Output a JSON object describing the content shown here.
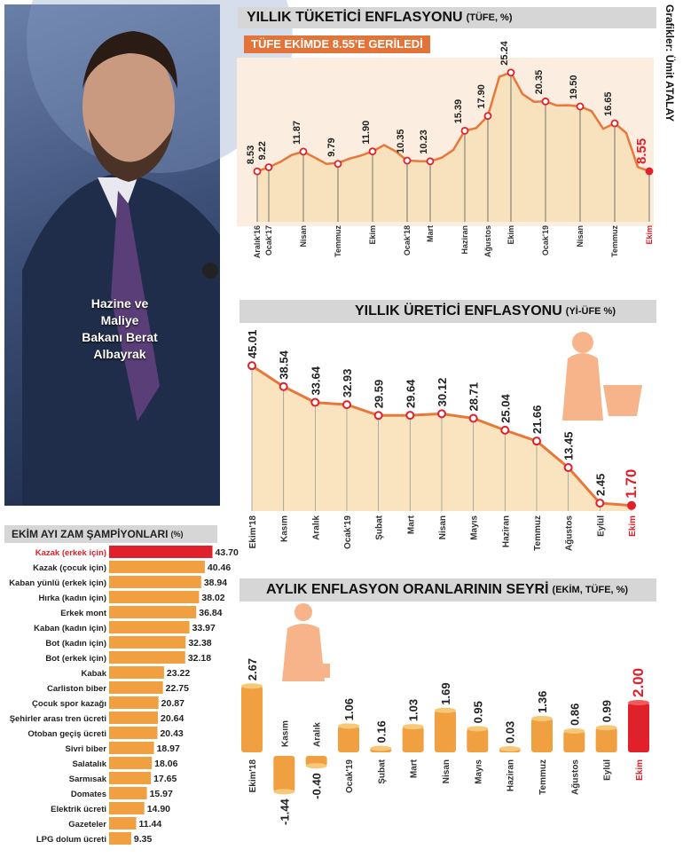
{
  "photo": {
    "caption": "Hazine ve Maliye Bakanı Berat Albayrak"
  },
  "credit": "Grafikler: Ümit ATALAY",
  "colors": {
    "accent": "#f0a040",
    "line": "#e8773a",
    "highlight": "#e0202a",
    "panel": "#d6d6d6",
    "fill": "#f8dfb4"
  },
  "chart_data": [
    {
      "type": "line",
      "title": "YILLIK TÜKETİCİ ENFLASYONU",
      "title_unit": "(TÜFE, %)",
      "subtitle": "TÜFE EKİMDE 8.55'E GERİLEDİ",
      "tick_labels": [
        "Aralık'16",
        "Ocak'17",
        "Nisan",
        "Temmuz",
        "Ekim",
        "Ocak'18",
        "Mart",
        "Haziran",
        "Ağustos",
        "Ekim",
        "Ocak'19",
        "Nisan",
        "Temmuz",
        "Ekim"
      ],
      "labeled_points": [
        {
          "label": "8.53",
          "value": 8.53
        },
        {
          "label": "9.22",
          "value": 9.22
        },
        {
          "label": "11.87",
          "value": 11.87
        },
        {
          "label": "9.79",
          "value": 9.79
        },
        {
          "label": "11.90",
          "value": 11.9
        },
        {
          "label": "10.35",
          "value": 10.35
        },
        {
          "label": "10.23",
          "value": 10.23
        },
        {
          "label": "15.39",
          "value": 15.39
        },
        {
          "label": "17.90",
          "value": 17.9
        },
        {
          "label": "25.24",
          "value": 25.24
        },
        {
          "label": "20.35",
          "value": 20.35
        },
        {
          "label": "19.50",
          "value": 19.5
        },
        {
          "label": "16.65",
          "value": 16.65
        },
        {
          "label": "8.55",
          "value": 8.55
        }
      ],
      "monthly_values": [
        8.53,
        9.22,
        10.13,
        11.29,
        11.87,
        10.85,
        9.79,
        9.94,
        10.68,
        11.2,
        11.9,
        12.98,
        11.92,
        10.35,
        10.26,
        10.23,
        10.85,
        12.15,
        15.39,
        15.85,
        17.9,
        24.52,
        25.24,
        21.62,
        20.3,
        20.35,
        19.67,
        19.71,
        19.5,
        18.71,
        15.72,
        16.65,
        15.01,
        9.26,
        8.55
      ],
      "ylim": [
        0,
        27
      ]
    },
    {
      "type": "line",
      "title": "YILLIK ÜRETİCİ ENFLASYONU",
      "title_unit": "(Yİ-ÜFE %)",
      "categories": [
        "Ekim'18",
        "Kasım",
        "Aralık",
        "Ocak'19",
        "Şubat",
        "Mart",
        "Nisan",
        "Mayıs",
        "Haziran",
        "Temmuz",
        "Ağustos",
        "Eylül",
        "Ekim"
      ],
      "values": [
        45.01,
        38.54,
        33.64,
        32.93,
        29.59,
        29.64,
        30.12,
        28.71,
        25.04,
        21.66,
        13.45,
        2.45,
        1.7
      ],
      "value_labels": [
        "45.01",
        "38.54",
        "33.64",
        "32.93",
        "29.59",
        "29.64",
        "30.12",
        "28.71",
        "25.04",
        "21.66",
        "13.45",
        "2.45",
        "1.70"
      ],
      "ylim": [
        0,
        50
      ]
    },
    {
      "type": "bar",
      "title": "AYLIK ENFLASYON ORANLARININ SEYRİ",
      "title_unit": "(EKİM, TÜFE, %)",
      "categories": [
        "Ekim'18",
        "Kasım",
        "Aralık",
        "Ocak'19",
        "Şubat",
        "Mart",
        "Nisan",
        "Mayıs",
        "Haziran",
        "Temmuz",
        "Ağustos",
        "Eylül",
        "Ekim"
      ],
      "values": [
        2.67,
        -1.44,
        -0.4,
        1.06,
        0.16,
        1.03,
        1.69,
        0.95,
        0.03,
        1.36,
        0.86,
        0.99,
        2.0
      ],
      "value_labels": [
        "2.67",
        "-1.44",
        "-0.40",
        "1.06",
        "0.16",
        "1.03",
        "1.69",
        "0.95",
        "0.03",
        "1.36",
        "0.86",
        "0.99",
        "2.00"
      ],
      "ylim": [
        -1.5,
        2.8
      ]
    },
    {
      "type": "bar",
      "orientation": "horizontal",
      "title": "EKİM AYI ZAM ŞAMPİYONLARI",
      "title_unit": "(%)",
      "categories": [
        "Kazak (erkek için)",
        "Kazak (çocuk için)",
        "Kaban yünlü (erkek için)",
        "Hırka (kadın için)",
        "Erkek mont",
        "Kaban (kadın için)",
        "Bot (kadın için)",
        "Bot (erkek için)",
        "Kabak",
        "Carliston biber",
        "Çocuk spor kazağı",
        "Şehirler arası tren ücreti",
        "Otoban geçiş ücreti",
        "Sivri biber",
        "Salatalık",
        "Sarmısak",
        "Domates",
        "Elektrik ücreti",
        "Gazeteler",
        "LPG dolum ücreti"
      ],
      "values": [
        43.7,
        40.46,
        38.94,
        38.02,
        36.84,
        33.97,
        32.38,
        32.18,
        23.22,
        22.75,
        20.87,
        20.64,
        20.43,
        18.97,
        18.06,
        17.65,
        15.97,
        14.9,
        11.44,
        9.35
      ],
      "value_labels": [
        "43.70",
        "40.46",
        "38.94",
        "38.02",
        "36.84",
        "33.97",
        "32.38",
        "32.18",
        "23.22",
        "22.75",
        "20.87",
        "20.64",
        "20.43",
        "18.97",
        "18.06",
        "17.65",
        "15.97",
        "14.90",
        "11.44",
        "9.35"
      ],
      "xlim": [
        0,
        45
      ]
    }
  ]
}
